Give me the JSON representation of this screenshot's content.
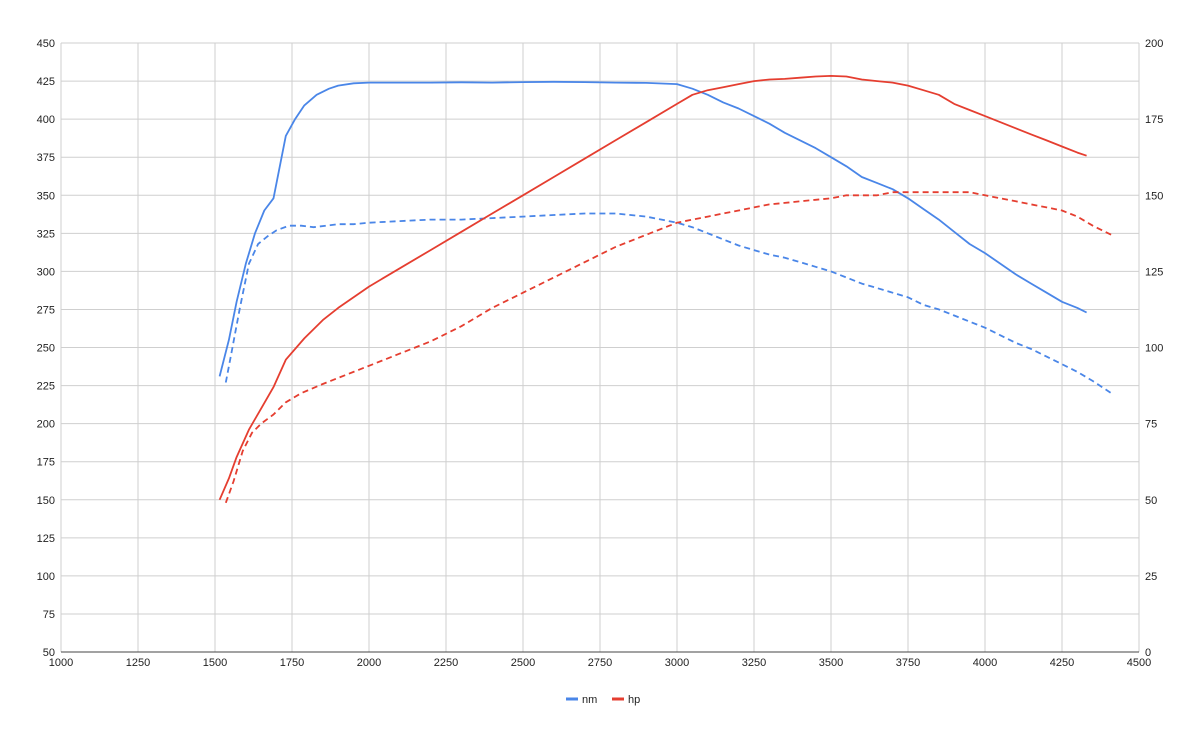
{
  "chart_data": {
    "type": "line",
    "xlim": [
      1000,
      4500
    ],
    "ylim_left": [
      50,
      450
    ],
    "ylim_right": [
      0,
      200
    ],
    "x_ticks": [
      "1000",
      "1250",
      "1500",
      "1750",
      "2000",
      "2250",
      "2500",
      "2750",
      "3000",
      "3250",
      "3500",
      "3750",
      "4000",
      "4250",
      "4500"
    ],
    "y_left_ticks": [
      "450",
      "425",
      "400",
      "375",
      "350",
      "325",
      "300",
      "275",
      "250",
      "225",
      "200",
      "175",
      "150",
      "125",
      "100",
      "75",
      "50"
    ],
    "y_right_ticks": [
      "200",
      "175",
      "150",
      "125",
      "100",
      "75",
      "50",
      "25",
      "0"
    ],
    "grid": true,
    "legend": {
      "position": "bottom",
      "entries": [
        {
          "label": "nm",
          "color": "#4a86e8"
        },
        {
          "label": "hp",
          "color": "#e53e30"
        }
      ]
    },
    "series": [
      {
        "name": "nm",
        "axis": "left",
        "style": "solid",
        "color": "#4a86e8",
        "points": [
          [
            1515,
            231
          ],
          [
            1545,
            255
          ],
          [
            1570,
            280
          ],
          [
            1600,
            305
          ],
          [
            1630,
            325
          ],
          [
            1660,
            340
          ],
          [
            1690,
            348
          ],
          [
            1730,
            389
          ],
          [
            1760,
            400
          ],
          [
            1790,
            409
          ],
          [
            1830,
            416
          ],
          [
            1870,
            420
          ],
          [
            1900,
            422
          ],
          [
            1950,
            423.5
          ],
          [
            2000,
            424
          ],
          [
            2100,
            424
          ],
          [
            2200,
            424
          ],
          [
            2300,
            424.2
          ],
          [
            2400,
            424
          ],
          [
            2500,
            424.3
          ],
          [
            2600,
            424.5
          ],
          [
            2700,
            424.3
          ],
          [
            2800,
            424
          ],
          [
            2900,
            423.8
          ],
          [
            3000,
            423
          ],
          [
            3050,
            420
          ],
          [
            3100,
            416
          ],
          [
            3150,
            411
          ],
          [
            3200,
            407
          ],
          [
            3250,
            402
          ],
          [
            3300,
            397
          ],
          [
            3350,
            391
          ],
          [
            3400,
            386
          ],
          [
            3450,
            381
          ],
          [
            3500,
            375
          ],
          [
            3550,
            369
          ],
          [
            3600,
            362
          ],
          [
            3650,
            358
          ],
          [
            3700,
            354
          ],
          [
            3750,
            348
          ],
          [
            3800,
            341
          ],
          [
            3850,
            334
          ],
          [
            3900,
            326
          ],
          [
            3950,
            318
          ],
          [
            4000,
            312
          ],
          [
            4050,
            305
          ],
          [
            4100,
            298
          ],
          [
            4150,
            292
          ],
          [
            4200,
            286
          ],
          [
            4250,
            280
          ],
          [
            4300,
            276
          ],
          [
            4330,
            273
          ]
        ]
      },
      {
        "name": "",
        "axis": "left",
        "style": "dashed",
        "color": "#4a86e8",
        "points": [
          [
            1535,
            227
          ],
          [
            1555,
            248
          ],
          [
            1580,
            275
          ],
          [
            1610,
            305
          ],
          [
            1640,
            318
          ],
          [
            1670,
            323
          ],
          [
            1700,
            327
          ],
          [
            1740,
            330
          ],
          [
            1780,
            330
          ],
          [
            1820,
            329
          ],
          [
            1860,
            330
          ],
          [
            1900,
            331
          ],
          [
            1950,
            331
          ],
          [
            2000,
            332
          ],
          [
            2100,
            333
          ],
          [
            2200,
            334
          ],
          [
            2300,
            334
          ],
          [
            2400,
            335
          ],
          [
            2500,
            336
          ],
          [
            2600,
            337
          ],
          [
            2700,
            338
          ],
          [
            2800,
            338
          ],
          [
            2900,
            336
          ],
          [
            3000,
            332
          ],
          [
            3050,
            329
          ],
          [
            3100,
            325
          ],
          [
            3150,
            321
          ],
          [
            3200,
            317
          ],
          [
            3250,
            314
          ],
          [
            3300,
            311
          ],
          [
            3350,
            309
          ],
          [
            3400,
            306
          ],
          [
            3450,
            303
          ],
          [
            3500,
            300
          ],
          [
            3550,
            296
          ],
          [
            3600,
            292
          ],
          [
            3650,
            289
          ],
          [
            3700,
            286
          ],
          [
            3750,
            283
          ],
          [
            3800,
            278
          ],
          [
            3850,
            275
          ],
          [
            3900,
            271
          ],
          [
            3950,
            267
          ],
          [
            4000,
            263
          ],
          [
            4050,
            258
          ],
          [
            4100,
            253
          ],
          [
            4150,
            249
          ],
          [
            4200,
            244
          ],
          [
            4250,
            239
          ],
          [
            4300,
            234
          ],
          [
            4350,
            228
          ],
          [
            4410,
            220
          ]
        ]
      },
      {
        "name": "hp",
        "axis": "right",
        "style": "solid",
        "color": "#e53e30",
        "points": [
          [
            1515,
            50
          ],
          [
            1545,
            57
          ],
          [
            1570,
            64
          ],
          [
            1610,
            73
          ],
          [
            1650,
            80
          ],
          [
            1690,
            87
          ],
          [
            1730,
            96
          ],
          [
            1790,
            103
          ],
          [
            1850,
            109
          ],
          [
            1900,
            113
          ],
          [
            2000,
            120
          ],
          [
            2100,
            126
          ],
          [
            2200,
            132
          ],
          [
            2300,
            138
          ],
          [
            2400,
            144
          ],
          [
            2500,
            150
          ],
          [
            2600,
            156
          ],
          [
            2700,
            162
          ],
          [
            2800,
            168
          ],
          [
            2900,
            174
          ],
          [
            3000,
            180
          ],
          [
            3050,
            183
          ],
          [
            3100,
            184.5
          ],
          [
            3150,
            185.5
          ],
          [
            3200,
            186.5
          ],
          [
            3250,
            187.5
          ],
          [
            3300,
            188
          ],
          [
            3350,
            188.2
          ],
          [
            3400,
            188.6
          ],
          [
            3450,
            189
          ],
          [
            3500,
            189.2
          ],
          [
            3550,
            189
          ],
          [
            3600,
            188
          ],
          [
            3650,
            187.5
          ],
          [
            3700,
            187
          ],
          [
            3750,
            186
          ],
          [
            3800,
            184.5
          ],
          [
            3850,
            183
          ],
          [
            3900,
            180
          ],
          [
            3950,
            178
          ],
          [
            4000,
            176
          ],
          [
            4050,
            174
          ],
          [
            4100,
            172
          ],
          [
            4150,
            170
          ],
          [
            4200,
            168
          ],
          [
            4250,
            166
          ],
          [
            4300,
            164
          ],
          [
            4330,
            163
          ]
        ]
      },
      {
        "name": "",
        "axis": "right",
        "style": "dashed",
        "color": "#e53e30",
        "points": [
          [
            1535,
            49
          ],
          [
            1560,
            56
          ],
          [
            1590,
            66
          ],
          [
            1620,
            72
          ],
          [
            1650,
            75
          ],
          [
            1690,
            78
          ],
          [
            1730,
            82
          ],
          [
            1780,
            85
          ],
          [
            1850,
            88
          ],
          [
            1900,
            90
          ],
          [
            2000,
            94
          ],
          [
            2100,
            98
          ],
          [
            2200,
            102
          ],
          [
            2300,
            107
          ],
          [
            2400,
            113
          ],
          [
            2500,
            118
          ],
          [
            2600,
            123
          ],
          [
            2700,
            128
          ],
          [
            2800,
            133
          ],
          [
            2900,
            137
          ],
          [
            3000,
            141
          ],
          [
            3050,
            142
          ],
          [
            3100,
            143
          ],
          [
            3150,
            144
          ],
          [
            3200,
            145
          ],
          [
            3250,
            146
          ],
          [
            3300,
            147
          ],
          [
            3350,
            147.5
          ],
          [
            3400,
            148
          ],
          [
            3450,
            148.5
          ],
          [
            3500,
            149
          ],
          [
            3550,
            150
          ],
          [
            3600,
            150
          ],
          [
            3650,
            150
          ],
          [
            3700,
            151
          ],
          [
            3750,
            151
          ],
          [
            3800,
            151
          ],
          [
            3850,
            151
          ],
          [
            3900,
            151
          ],
          [
            3950,
            151
          ],
          [
            4000,
            150
          ],
          [
            4050,
            149
          ],
          [
            4100,
            148
          ],
          [
            4150,
            147
          ],
          [
            4200,
            146
          ],
          [
            4250,
            145
          ],
          [
            4300,
            143
          ],
          [
            4350,
            140
          ],
          [
            4410,
            137
          ]
        ]
      }
    ]
  }
}
